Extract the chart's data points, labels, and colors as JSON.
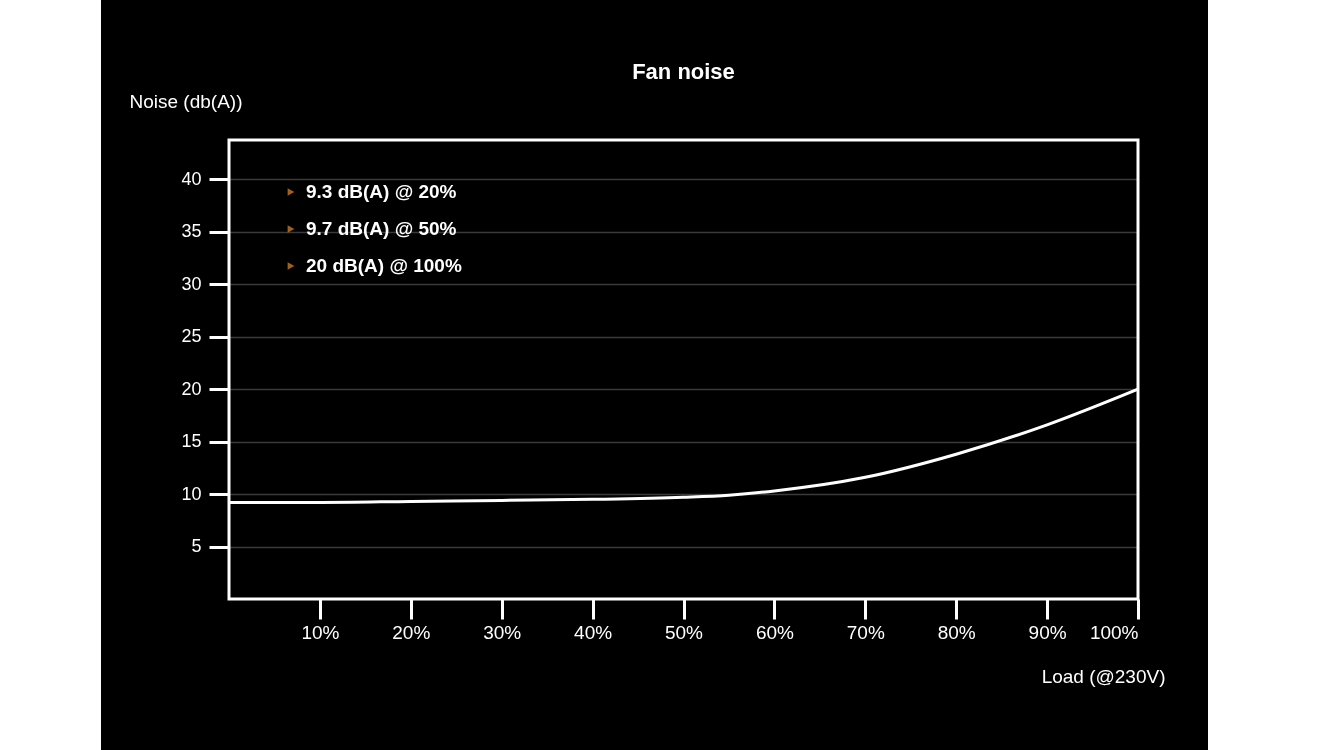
{
  "chart_data": {
    "type": "line",
    "title": "Fan noise",
    "ylabel": "Noise (db(A))",
    "xlabel": "Load (@230V)",
    "x": [
      0,
      10,
      20,
      30,
      40,
      50,
      55,
      60,
      70,
      80,
      90,
      100
    ],
    "series": [
      {
        "color": "#ffffff",
        "values": [
          9.2,
          9.2,
          9.3,
          9.4,
          9.5,
          9.7,
          9.9,
          10.3,
          11.6,
          13.8,
          16.6,
          20
        ]
      }
    ],
    "xlim": [
      0,
      100
    ],
    "xticks": [
      {
        "value": 10,
        "label": "10%"
      },
      {
        "value": 20,
        "label": "20%"
      },
      {
        "value": 30,
        "label": "30%"
      },
      {
        "value": 40,
        "label": "40%"
      },
      {
        "value": 50,
        "label": "50%"
      },
      {
        "value": 60,
        "label": "60%"
      },
      {
        "value": 70,
        "label": "70%"
      },
      {
        "value": 80,
        "label": "80%"
      },
      {
        "value": 90,
        "label": "90%"
      },
      {
        "value": 100,
        "label": "100%"
      }
    ],
    "ylim": [
      0,
      43.75
    ],
    "yticks": [
      5,
      10,
      15,
      20,
      25,
      30,
      35,
      40
    ],
    "grid": "y",
    "marker": "none",
    "line_style": "solid",
    "annotations": [
      "9.3 dB(A) @ 20%",
      "9.7 dB(A) @ 50%",
      "20 dB(A) @ 100%"
    ]
  }
}
